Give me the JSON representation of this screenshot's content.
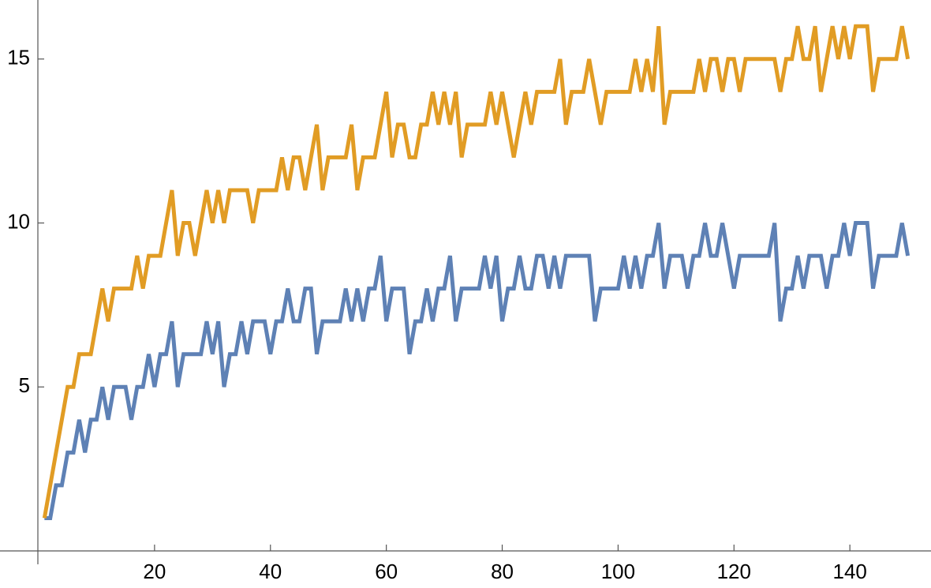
{
  "chart_data": {
    "type": "line",
    "x": [
      1,
      2,
      3,
      4,
      5,
      6,
      7,
      8,
      9,
      10,
      11,
      12,
      13,
      14,
      15,
      16,
      17,
      18,
      19,
      20,
      21,
      22,
      23,
      24,
      25,
      26,
      27,
      28,
      29,
      30,
      31,
      32,
      33,
      34,
      35,
      36,
      37,
      38,
      39,
      40,
      41,
      42,
      43,
      44,
      45,
      46,
      47,
      48,
      49,
      50,
      51,
      52,
      53,
      54,
      55,
      56,
      57,
      58,
      59,
      60,
      61,
      62,
      63,
      64,
      65,
      66,
      67,
      68,
      69,
      70,
      71,
      72,
      73,
      74,
      75,
      76,
      77,
      78,
      79,
      80,
      81,
      82,
      83,
      84,
      85,
      86,
      87,
      88,
      89,
      90,
      91,
      92,
      93,
      94,
      95,
      96,
      97,
      98,
      99,
      100,
      101,
      102,
      103,
      104,
      105,
      106,
      107,
      108,
      109,
      110,
      111,
      112,
      113,
      114,
      115,
      116,
      117,
      118,
      119,
      120,
      121,
      122,
      123,
      124,
      125,
      126,
      127,
      128,
      129,
      130,
      131,
      132,
      133,
      134,
      135,
      136,
      137,
      138,
      139,
      140,
      141,
      142,
      143,
      144,
      145,
      146,
      147,
      148,
      149,
      150
    ],
    "series": [
      {
        "color": "#5e81b5",
        "values": [
          1,
          1,
          2,
          2,
          3,
          3,
          4,
          3,
          4,
          4,
          5,
          4,
          5,
          5,
          5,
          4,
          5,
          5,
          6,
          5,
          6,
          6,
          7,
          5,
          6,
          6,
          6,
          6,
          7,
          6,
          7,
          5,
          6,
          6,
          7,
          6,
          7,
          7,
          7,
          6,
          7,
          7,
          8,
          7,
          7,
          8,
          8,
          6,
          7,
          7,
          7,
          7,
          8,
          7,
          8,
          7,
          8,
          8,
          9,
          7,
          8,
          8,
          8,
          6,
          7,
          7,
          8,
          7,
          8,
          8,
          9,
          7,
          8,
          8,
          8,
          8,
          9,
          8,
          9,
          7,
          8,
          8,
          9,
          8,
          8,
          9,
          9,
          8,
          9,
          8,
          9,
          9,
          9,
          9,
          9,
          7,
          8,
          8,
          8,
          8,
          9,
          8,
          9,
          8,
          9,
          9,
          10,
          8,
          9,
          9,
          9,
          8,
          9,
          9,
          10,
          9,
          9,
          10,
          9,
          8,
          9,
          9,
          9,
          9,
          9,
          9,
          10,
          7,
          8,
          8,
          9,
          8,
          9,
          9,
          9,
          8,
          9,
          9,
          10,
          9,
          10,
          10,
          10,
          8,
          9,
          9,
          9,
          9,
          10,
          9
        ]
      },
      {
        "color": "#e19c24",
        "values": [
          1,
          2,
          3,
          4,
          5,
          5,
          6,
          6,
          6,
          7,
          8,
          7,
          8,
          8,
          8,
          8,
          9,
          8,
          9,
          9,
          9,
          10,
          11,
          9,
          10,
          10,
          9,
          10,
          11,
          10,
          11,
          10,
          11,
          11,
          11,
          11,
          10,
          11,
          11,
          11,
          11,
          12,
          11,
          12,
          12,
          11,
          12,
          13,
          11,
          12,
          12,
          12,
          12,
          13,
          11,
          12,
          12,
          12,
          13,
          14,
          12,
          13,
          13,
          12,
          12,
          13,
          13,
          14,
          13,
          14,
          13,
          14,
          12,
          13,
          13,
          13,
          13,
          14,
          13,
          14,
          13,
          12,
          13,
          14,
          13,
          14,
          14,
          14,
          14,
          15,
          13,
          14,
          14,
          14,
          15,
          14,
          13,
          14,
          14,
          14,
          14,
          14,
          15,
          14,
          15,
          14,
          16,
          13,
          14,
          14,
          14,
          14,
          14,
          15,
          14,
          15,
          15,
          14,
          15,
          15,
          14,
          15,
          15,
          15,
          15,
          15,
          15,
          14,
          15,
          15,
          16,
          15,
          15,
          16,
          14,
          15,
          16,
          15,
          16,
          15,
          16,
          16,
          16,
          14,
          15,
          15,
          15,
          15,
          16,
          15
        ]
      }
    ],
    "xlim": [
      0,
      154
    ],
    "ylim": [
      0,
      16.8
    ],
    "xticks": [
      20,
      40,
      60,
      80,
      100,
      120,
      140
    ],
    "yticks": [
      5,
      10,
      15
    ]
  }
}
